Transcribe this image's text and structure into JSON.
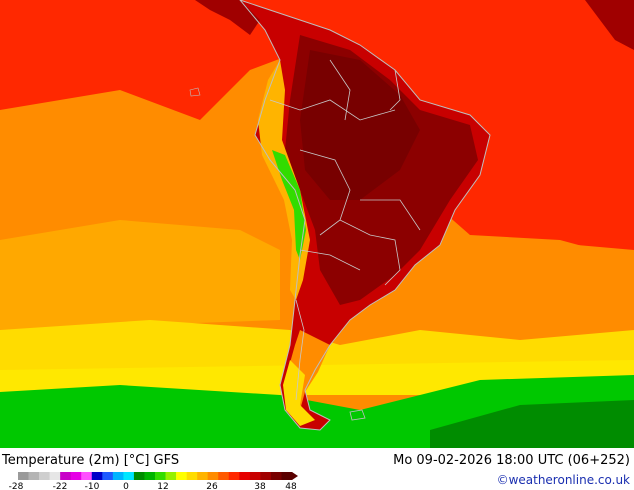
{
  "title": "Temperature (2m) [°C] GFS",
  "datetime": "Mo 09-02-2026 18:00 UTC (06+252)",
  "credit": "©weatheronline.co.uk",
  "legend": {
    "ticks": [
      "-28",
      "-22",
      "-10",
      "0",
      "12",
      "26",
      "38",
      "48"
    ],
    "colors": [
      "#9a9a9a",
      "#b4b4b4",
      "#cecece",
      "#e6e6e6",
      "#c800c8",
      "#e600e6",
      "#ff50ff",
      "#0000c8",
      "#1e5aff",
      "#00b4ff",
      "#00e6ff",
      "#008c00",
      "#00b400",
      "#32dc00",
      "#96f000",
      "#ffff00",
      "#ffdc00",
      "#ffb400",
      "#ff8c00",
      "#ff5a00",
      "#ff2800",
      "#e60000",
      "#c80000",
      "#a00000",
      "#780000",
      "#5a0000"
    ]
  },
  "palette": {
    "ocean_orange": "#ff8c00",
    "ocean_red": "#ff2800",
    "land_dark": "#8c0000",
    "land_hot": "#a00000",
    "yellow": "#ffdc00",
    "green": "#00c800",
    "dark_green": "#008c00",
    "border": "#c8c8c8"
  }
}
